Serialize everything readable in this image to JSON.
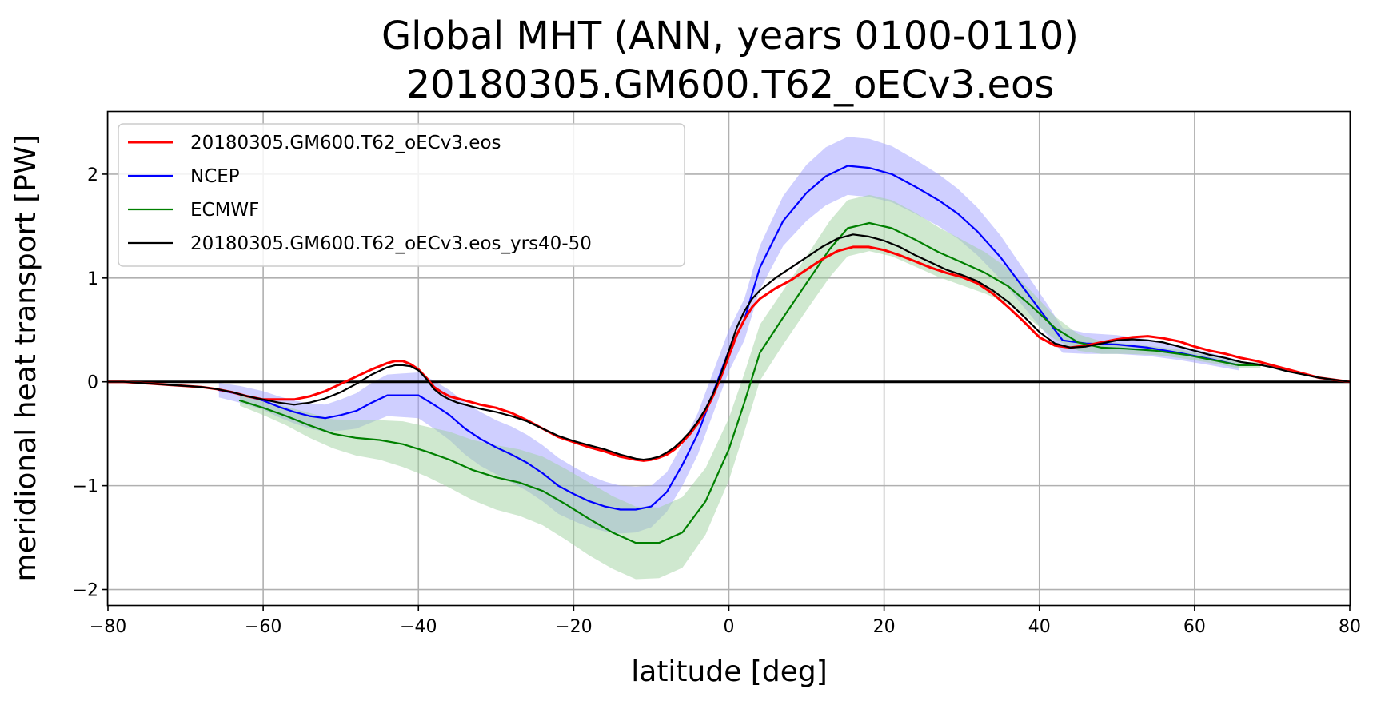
{
  "chart_data": {
    "type": "line",
    "title": "Global MHT (ANN, years 0100-0110)",
    "subtitle": "20180305.GM600.T62_oECv3.eos",
    "xlabel": "latitude [deg]",
    "ylabel": "meridional heat transport [PW]",
    "xlim": [
      -80,
      80
    ],
    "ylim": [
      -2.15,
      2.6
    ],
    "xticks": [
      -80,
      -60,
      -40,
      -20,
      0,
      20,
      40,
      60,
      80
    ],
    "yticks": [
      -2,
      -1,
      0,
      1,
      2
    ],
    "xtick_labels": [
      "−80",
      "−60",
      "−40",
      "−20",
      "0",
      "20",
      "40",
      "60",
      "80"
    ],
    "ytick_labels": [
      "−2",
      "−1",
      "0",
      "1",
      "2"
    ],
    "grid": true,
    "legend_position": "top-left",
    "zero_line": true,
    "series": [
      {
        "name": "20180305.GM600.T62_oECv3.eos",
        "color": "#ff0000",
        "x": [
          -80,
          -78,
          -76,
          -74,
          -72,
          -70,
          -68,
          -66,
          -64,
          -62,
          -60,
          -58,
          -56,
          -54,
          -52,
          -50,
          -48,
          -46,
          -44,
          -43,
          -42,
          -41,
          -40,
          -39,
          -38,
          -37,
          -36,
          -35,
          -34,
          -33,
          -32,
          -30,
          -28,
          -26,
          -24,
          -22,
          -20,
          -18,
          -16,
          -14,
          -12,
          -11,
          -10,
          -9,
          -8,
          -7,
          -6,
          -5,
          -4,
          -3,
          -2,
          -1,
          0,
          1,
          2,
          3,
          4,
          5,
          6,
          8,
          10,
          12,
          14,
          16,
          18,
          20,
          22,
          24,
          26,
          28,
          30,
          32,
          34,
          36,
          38,
          40,
          42,
          44,
          46,
          48,
          50,
          52,
          54,
          56,
          58,
          60,
          62,
          64,
          66,
          68,
          70,
          72,
          74,
          76,
          78,
          80
        ],
        "y": [
          0,
          0,
          -0.01,
          -0.02,
          -0.03,
          -0.04,
          -0.05,
          -0.07,
          -0.1,
          -0.14,
          -0.17,
          -0.17,
          -0.17,
          -0.14,
          -0.09,
          -0.02,
          0.05,
          0.12,
          0.18,
          0.2,
          0.2,
          0.17,
          0.12,
          0.04,
          -0.05,
          -0.1,
          -0.14,
          -0.16,
          -0.18,
          -0.2,
          -0.22,
          -0.25,
          -0.3,
          -0.37,
          -0.45,
          -0.53,
          -0.58,
          -0.63,
          -0.67,
          -0.72,
          -0.75,
          -0.76,
          -0.75,
          -0.73,
          -0.7,
          -0.65,
          -0.58,
          -0.5,
          -0.4,
          -0.28,
          -0.13,
          0.05,
          0.25,
          0.45,
          0.6,
          0.72,
          0.8,
          0.85,
          0.9,
          0.98,
          1.08,
          1.18,
          1.26,
          1.3,
          1.3,
          1.27,
          1.22,
          1.16,
          1.1,
          1.05,
          1.01,
          0.95,
          0.85,
          0.72,
          0.58,
          0.43,
          0.35,
          0.33,
          0.35,
          0.38,
          0.41,
          0.43,
          0.44,
          0.42,
          0.39,
          0.34,
          0.3,
          0.27,
          0.23,
          0.2,
          0.16,
          0.12,
          0.08,
          0.04,
          0.02,
          0
        ]
      },
      {
        "name": "NCEP",
        "color": "#0000ff",
        "band_color": "#a0a0ff",
        "x": [
          -65.7,
          -63,
          -60,
          -58,
          -56,
          -54,
          -52,
          -50,
          -48,
          -46,
          -44,
          -42,
          -40,
          -38,
          -36,
          -34,
          -32,
          -30,
          -28,
          -26,
          -24,
          -22,
          -20,
          -18,
          -16,
          -14,
          -12,
          -10,
          -8,
          -6,
          -4,
          -2,
          0,
          2,
          4,
          7,
          10,
          12.5,
          15.3,
          18.1,
          21,
          24,
          27,
          29.5,
          32,
          35,
          38,
          41,
          43,
          46,
          50,
          54,
          58,
          62,
          65.7
        ],
        "y": [
          -0.08,
          -0.12,
          -0.18,
          -0.24,
          -0.29,
          -0.33,
          -0.35,
          -0.32,
          -0.28,
          -0.2,
          -0.13,
          -0.13,
          -0.13,
          -0.22,
          -0.32,
          -0.45,
          -0.55,
          -0.63,
          -0.7,
          -0.78,
          -0.88,
          -1.0,
          -1.08,
          -1.15,
          -1.2,
          -1.23,
          -1.23,
          -1.2,
          -1.06,
          -0.8,
          -0.5,
          -0.1,
          0.3,
          0.6,
          1.1,
          1.55,
          1.82,
          1.98,
          2.08,
          2.06,
          2.0,
          1.88,
          1.75,
          1.62,
          1.45,
          1.2,
          0.9,
          0.6,
          0.4,
          0.37,
          0.36,
          0.33,
          0.28,
          0.22,
          0.16
        ],
        "band_width": [
          0.07,
          0.08,
          0.09,
          0.1,
          0.11,
          0.12,
          0.13,
          0.15,
          0.17,
          0.19,
          0.2,
          0.21,
          0.22,
          0.23,
          0.24,
          0.25,
          0.26,
          0.26,
          0.27,
          0.27,
          0.27,
          0.27,
          0.26,
          0.25,
          0.24,
          0.23,
          0.22,
          0.2,
          0.19,
          0.2,
          0.2,
          0.2,
          0.2,
          0.2,
          0.21,
          0.24,
          0.27,
          0.28,
          0.28,
          0.28,
          0.27,
          0.26,
          0.25,
          0.24,
          0.23,
          0.21,
          0.18,
          0.15,
          0.12,
          0.1,
          0.09,
          0.08,
          0.07,
          0.06,
          0.05
        ]
      },
      {
        "name": "ECMWF",
        "color": "#008000",
        "band_color": "#9fd19f",
        "x": [
          -63,
          -60,
          -57,
          -54,
          -51,
          -48,
          -45,
          -42,
          -39,
          -36,
          -33,
          -30,
          -27,
          -24,
          -21,
          -18,
          -15,
          -12,
          -9,
          -6,
          -3,
          0,
          2,
          4,
          7,
          10,
          13,
          15.3,
          18.1,
          21,
          24,
          27,
          30,
          33,
          36,
          39,
          42,
          45,
          48,
          51,
          55,
          59,
          63,
          65.7,
          68.5
        ],
        "y": [
          -0.18,
          -0.25,
          -0.33,
          -0.42,
          -0.5,
          -0.54,
          -0.56,
          -0.6,
          -0.67,
          -0.75,
          -0.85,
          -0.92,
          -0.97,
          -1.05,
          -1.18,
          -1.32,
          -1.45,
          -1.55,
          -1.55,
          -1.45,
          -1.15,
          -0.65,
          -0.2,
          0.28,
          0.62,
          0.95,
          1.28,
          1.48,
          1.53,
          1.48,
          1.37,
          1.25,
          1.15,
          1.05,
          0.92,
          0.73,
          0.52,
          0.38,
          0.33,
          0.32,
          0.3,
          0.26,
          0.2,
          0.16,
          0.16
        ],
        "band_width": [
          0.05,
          0.07,
          0.09,
          0.12,
          0.14,
          0.17,
          0.19,
          0.22,
          0.24,
          0.27,
          0.29,
          0.31,
          0.32,
          0.33,
          0.34,
          0.35,
          0.35,
          0.35,
          0.34,
          0.34,
          0.32,
          0.3,
          0.28,
          0.27,
          0.26,
          0.26,
          0.27,
          0.27,
          0.27,
          0.27,
          0.26,
          0.24,
          0.22,
          0.2,
          0.17,
          0.14,
          0.11,
          0.08,
          0.06,
          0.05,
          0.04,
          0.04,
          0.03,
          0.03,
          0.03
        ]
      },
      {
        "name": "20180305.GM600.T62_oECv3.eos_yrs40-50",
        "color": "#000000",
        "x": [
          -80,
          -78,
          -76,
          -74,
          -72,
          -70,
          -68,
          -66,
          -64,
          -62,
          -60,
          -58,
          -56,
          -54,
          -52,
          -50,
          -48,
          -46,
          -44,
          -43,
          -42,
          -41,
          -40,
          -39,
          -38,
          -37,
          -36,
          -35,
          -34,
          -33,
          -32,
          -30,
          -28,
          -26,
          -24,
          -22,
          -20,
          -18,
          -16,
          -14,
          -12,
          -11,
          -10,
          -9,
          -8,
          -7,
          -6,
          -5,
          -4,
          -3,
          -2,
          -1,
          0,
          1,
          2,
          3,
          4,
          5,
          6,
          8,
          10,
          12,
          14,
          16,
          18,
          20,
          22,
          24,
          26,
          28,
          30,
          32,
          34,
          36,
          38,
          40,
          42,
          44,
          46,
          48,
          50,
          52,
          54,
          56,
          58,
          60,
          62,
          64,
          66,
          68,
          70,
          72,
          74,
          76,
          78,
          80
        ],
        "y": [
          0,
          0,
          -0.01,
          -0.02,
          -0.03,
          -0.04,
          -0.05,
          -0.07,
          -0.1,
          -0.14,
          -0.17,
          -0.2,
          -0.22,
          -0.2,
          -0.16,
          -0.1,
          -0.02,
          0.07,
          0.14,
          0.16,
          0.16,
          0.15,
          0.11,
          0.03,
          -0.07,
          -0.13,
          -0.17,
          -0.2,
          -0.22,
          -0.24,
          -0.26,
          -0.29,
          -0.33,
          -0.38,
          -0.45,
          -0.52,
          -0.57,
          -0.61,
          -0.65,
          -0.7,
          -0.74,
          -0.75,
          -0.74,
          -0.72,
          -0.68,
          -0.63,
          -0.56,
          -0.48,
          -0.38,
          -0.26,
          -0.11,
          0.08,
          0.3,
          0.52,
          0.68,
          0.8,
          0.88,
          0.94,
          1.0,
          1.1,
          1.2,
          1.3,
          1.38,
          1.42,
          1.4,
          1.36,
          1.3,
          1.22,
          1.15,
          1.08,
          1.03,
          0.97,
          0.88,
          0.77,
          0.63,
          0.48,
          0.37,
          0.33,
          0.34,
          0.37,
          0.4,
          0.41,
          0.4,
          0.38,
          0.34,
          0.3,
          0.26,
          0.23,
          0.19,
          0.17,
          0.14,
          0.1,
          0.07,
          0.04,
          0.02,
          0
        ]
      }
    ]
  }
}
